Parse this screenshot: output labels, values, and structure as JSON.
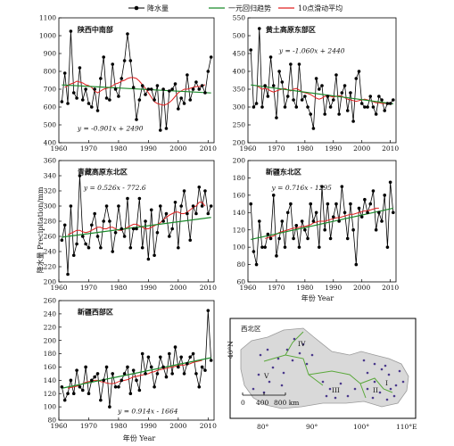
{
  "legend": {
    "precip": "降水量",
    "trend": "一元回归趋势",
    "moving": "10点滑动平均"
  },
  "colors": {
    "precip": "#000000",
    "trend": "#1b8a2b",
    "moving": "#e02020",
    "map_border": "#5aa83a",
    "map_land": "#d9d9d9",
    "map_station": "#4b3a8c"
  },
  "axis_labels": {
    "y_shared": "降水量 Precipitation/mm",
    "x": "年份 Year"
  },
  "chart_data": [
    {
      "type": "line",
      "title": "陕西中南部",
      "equation": "y = -0.901x + 2490",
      "x_ticks": [
        1960,
        1970,
        1980,
        1990,
        2000,
        2010
      ],
      "y_ticks": [
        400,
        500,
        600,
        700,
        800,
        900,
        1000,
        1100
      ],
      "xlim": [
        1960,
        2012
      ],
      "ylim": [
        400,
        1100
      ],
      "years_start": 1961,
      "series": [
        {
          "values": [
            630,
            790,
            620,
            1025,
            680,
            650,
            820,
            640,
            700,
            620,
            600,
            700,
            580,
            760,
            880,
            650,
            640,
            840,
            700,
            660,
            760,
            860,
            1010,
            860,
            710,
            530,
            640,
            720,
            670,
            700,
            700,
            640,
            720,
            470,
            700,
            480,
            690,
            700,
            730,
            590,
            650,
            620,
            780,
            640,
            700,
            740,
            700,
            720,
            680,
            800,
            880
          ]
        },
        {
          "values": [
            710,
            720,
            730,
            735,
            745,
            740,
            735,
            725,
            720,
            710,
            690,
            680,
            690,
            700,
            705,
            710,
            720,
            730,
            735,
            745,
            750,
            760,
            765,
            765,
            760,
            745,
            725,
            705,
            680,
            655,
            630,
            620,
            615,
            610,
            615,
            625,
            640,
            660,
            680,
            690,
            700,
            700,
            705,
            710,
            715,
            715,
            720,
            725
          ]
        }
      ],
      "trend": [
        [
          1961,
          724
        ],
        [
          2011,
          679
        ]
      ]
    },
    {
      "type": "line",
      "title": "黄土高原东部区",
      "equation": "y = -1.060x + 2440",
      "x_ticks": [
        1960,
        1970,
        1980,
        1990,
        2000,
        2010
      ],
      "y_ticks": [
        200,
        250,
        300,
        350,
        400,
        450,
        500,
        550
      ],
      "xlim": [
        1960,
        2012
      ],
      "ylim": [
        200,
        550
      ],
      "years_start": 1961,
      "series": [
        {
          "values": [
            460,
            300,
            310,
            520,
            300,
            360,
            330,
            440,
            360,
            270,
            400,
            370,
            300,
            330,
            420,
            320,
            300,
            420,
            320,
            330,
            300,
            280,
            240,
            380,
            350,
            360,
            280,
            330,
            300,
            320,
            390,
            280,
            340,
            360,
            290,
            340,
            260,
            380,
            400,
            310,
            300,
            300,
            330,
            300,
            280,
            330,
            320,
            290,
            310,
            310,
            320
          ]
        },
        {
          "values": [
            360,
            355,
            350,
            352,
            350,
            345,
            342,
            345,
            348,
            350,
            352,
            348,
            345,
            350,
            352,
            348,
            342,
            340,
            338,
            335,
            330,
            325,
            322,
            325,
            330,
            332,
            330,
            328,
            330,
            332,
            330,
            326,
            322,
            320,
            318,
            316,
            318,
            320,
            322,
            320,
            318,
            315,
            312,
            312,
            310,
            310,
            312
          ]
        }
      ],
      "trend": [
        [
          1961,
          362
        ],
        [
          2011,
          309
        ]
      ]
    },
    {
      "type": "line",
      "title": "青藏高原东北区",
      "equation": "y = 0.526x - 772.6",
      "x_ticks": [
        1960,
        1970,
        1980,
        1990,
        2000,
        2010
      ],
      "y_ticks": [
        200,
        220,
        240,
        260,
        280,
        300,
        320,
        340,
        360
      ],
      "xlim": [
        1960,
        2012
      ],
      "ylim": [
        200,
        360
      ],
      "years_start": 1961,
      "series": [
        {
          "values": [
            255,
            275,
            210,
            300,
            235,
            250,
            340,
            260,
            250,
            245,
            275,
            290,
            260,
            245,
            280,
            300,
            280,
            240,
            265,
            300,
            270,
            260,
            310,
            245,
            270,
            270,
            310,
            245,
            280,
            230,
            295,
            235,
            265,
            300,
            280,
            290,
            260,
            270,
            305,
            245,
            300,
            320,
            290,
            255,
            300,
            290,
            325,
            300,
            320,
            290,
            300
          ]
        },
        {
          "values": [
            262,
            264,
            266,
            268,
            268,
            266,
            265,
            266,
            268,
            270,
            272,
            272,
            270,
            270,
            272,
            272,
            270,
            268,
            268,
            270,
            272,
            274,
            276,
            276,
            274,
            272,
            270,
            270,
            272,
            274,
            276,
            278,
            282,
            285,
            288,
            290,
            292,
            292,
            290,
            290,
            292,
            295,
            298,
            300,
            305,
            305,
            300
          ]
        }
      ],
      "trend": [
        [
          1961,
          259
        ],
        [
          2011,
          285
        ]
      ]
    },
    {
      "type": "line",
      "title": "新疆东北区",
      "equation": "y = 0.716x - 1295",
      "x_ticks": [
        1960,
        1970,
        1980,
        1990,
        2000,
        2010
      ],
      "y_ticks": [
        60,
        80,
        100,
        120,
        140,
        160,
        180,
        200
      ],
      "xlim": [
        1960,
        2012
      ],
      "ylim": [
        60,
        200
      ],
      "years_start": 1961,
      "series": [
        {
          "values": [
            150,
            95,
            80,
            130,
            100,
            100,
            115,
            110,
            160,
            90,
            110,
            130,
            100,
            140,
            150,
            110,
            125,
            100,
            130,
            120,
            110,
            150,
            130,
            140,
            100,
            170,
            120,
            150,
            110,
            135,
            150,
            130,
            170,
            140,
            110,
            150,
            120,
            80,
            145,
            135,
            155,
            140,
            150,
            165,
            120,
            140,
            130,
            160,
            100,
            175,
            140
          ]
        },
        {
          "values": [
            110,
            111,
            112,
            113,
            115,
            117,
            118,
            119,
            120,
            121,
            122,
            122,
            123,
            124,
            124,
            125,
            126,
            128,
            129,
            130,
            130,
            130,
            131,
            132,
            133,
            134,
            134,
            135,
            136,
            137,
            138,
            138,
            139,
            140,
            141,
            142,
            142,
            143,
            144,
            145,
            145
          ]
        }
      ],
      "trend": [
        [
          1961,
          109
        ],
        [
          2011,
          145
        ]
      ]
    },
    {
      "type": "line",
      "title": "新疆西部区",
      "equation": "y = 0.914x - 1664",
      "x_ticks": [
        1960,
        1970,
        1980,
        1990,
        2000,
        2010
      ],
      "y_ticks": [
        80,
        100,
        120,
        140,
        160,
        180,
        200,
        220,
        240,
        260
      ],
      "xlim": [
        1960,
        2012
      ],
      "ylim": [
        80,
        260
      ],
      "years_start": 1961,
      "series": [
        {
          "values": [
            130,
            110,
            120,
            140,
            120,
            155,
            130,
            125,
            160,
            120,
            140,
            145,
            150,
            110,
            140,
            160,
            100,
            150,
            130,
            130,
            140,
            150,
            160,
            120,
            155,
            140,
            125,
            180,
            150,
            175,
            160,
            130,
            150,
            175,
            160,
            145,
            180,
            150,
            190,
            160,
            175,
            150,
            165,
            175,
            180,
            150,
            130,
            160,
            155,
            245,
            170
          ]
        },
        {
          "values": [
            128,
            129,
            130,
            131,
            133,
            135,
            137,
            138,
            139,
            140,
            140,
            138,
            137,
            136,
            135,
            135,
            136,
            138,
            139,
            140,
            141,
            143,
            145,
            146,
            147,
            148,
            149,
            150,
            152,
            153,
            155,
            156,
            157,
            158,
            159,
            160,
            161,
            162,
            163,
            163,
            164,
            165,
            167,
            168,
            169,
            170
          ]
        }
      ],
      "trend": [
        [
          1961,
          128
        ],
        [
          2011,
          174
        ]
      ]
    }
  ],
  "map": {
    "title": "西北区",
    "regions": [
      "I",
      "II",
      "III",
      "IV",
      "V"
    ],
    "lat_label": "40°N",
    "lon_labels": [
      "80°",
      "90°",
      "100°",
      "110°E"
    ],
    "scale_labels": [
      "0",
      "400",
      "800 km"
    ]
  }
}
